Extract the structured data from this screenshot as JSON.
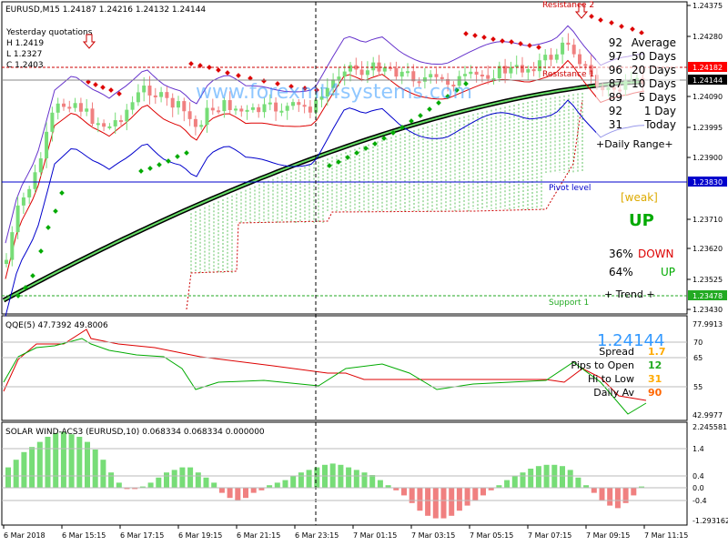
{
  "main_panel": {
    "symbol_header": "EURUSD,M15  1.24187 1.24216 1.24132 1.24144",
    "yesterday": {
      "title": "Yesterday quotations",
      "high": "H 1.2419",
      "low": "L 1.2327",
      "close": "C 1.2403"
    },
    "watermark": "www.forexmt4systems.com",
    "labels": {
      "resistance2": "Resistance 2",
      "resistance1": "Resistance 1",
      "pivot": "Pivot level",
      "support1": "Support 1"
    },
    "price_axis": [
      "1.24375",
      "1.24280",
      "1.24090",
      "1.23995",
      "1.23900",
      "1.23710",
      "1.23620",
      "1.23525",
      "1.23430"
    ],
    "price_tags": [
      {
        "text": "1.24182",
        "color": "#ff0000"
      },
      {
        "text": "1.24144",
        "color": "#000000"
      },
      {
        "text": "1.23830",
        "color": "#0000cc"
      },
      {
        "text": "1.23478",
        "color": "#22aa22"
      }
    ],
    "ranges": [
      {
        "value": "92",
        "label": "Average"
      },
      {
        "value": "97",
        "label": "50 Days"
      },
      {
        "value": "96",
        "label": "20 Days"
      },
      {
        "value": "87",
        "label": "10 Days"
      },
      {
        "value": "89",
        "label": "5 Days"
      },
      {
        "value": "92",
        "label": "1 Day"
      },
      {
        "value": "31",
        "label": "Today"
      }
    ],
    "daily_range_label": "+Daily Range+",
    "trend": {
      "strength": "[weak]",
      "direction": "UP",
      "down_pct": "36%",
      "down_label": "DOWN",
      "up_pct": "64%",
      "up_label": "UP",
      "footer": "+   Trend   +"
    }
  },
  "qqe_panel": {
    "header": "QQE(5) 47.7392 49.8006",
    "axis": [
      "77.9913",
      "70",
      "65",
      "55",
      "42.9977"
    ],
    "info": {
      "price": "1.24144",
      "rows": [
        {
          "label": "Spread",
          "value": "1.7",
          "color": "#ffaa00"
        },
        {
          "label": "Pips to Open",
          "value": "12",
          "color": "#22aa22"
        },
        {
          "label": "Hi to Low",
          "value": "31",
          "color": "#ffaa00"
        },
        {
          "label": "Daily Av",
          "value": "90",
          "color": "#ff6600"
        }
      ]
    }
  },
  "solar_panel": {
    "header": "SOLAR WIND-ACS3 (EURUSD,10) 0.068334 0.068334 0.000000",
    "axis": [
      "2.245581",
      "1.4",
      "0.4",
      "0.0",
      "-0.4",
      "-1.293162"
    ]
  },
  "time_axis": [
    "6 Mar 2018",
    "6 Mar 15:15",
    "6 Mar 17:15",
    "6 Mar 19:15",
    "6 Mar 21:15",
    "6 Mar 23:15",
    "7 Mar 01:15",
    "7 Mar 03:15",
    "7 Mar 05:15",
    "7 Mar 07:15",
    "7 Mar 09:15",
    "7 Mar 11:15"
  ],
  "colors": {
    "bull": "#77dd77",
    "bear": "#f08080",
    "green": "#00aa00",
    "red": "#dd0000",
    "blue": "#0000cc",
    "purple": "#6633cc"
  }
}
